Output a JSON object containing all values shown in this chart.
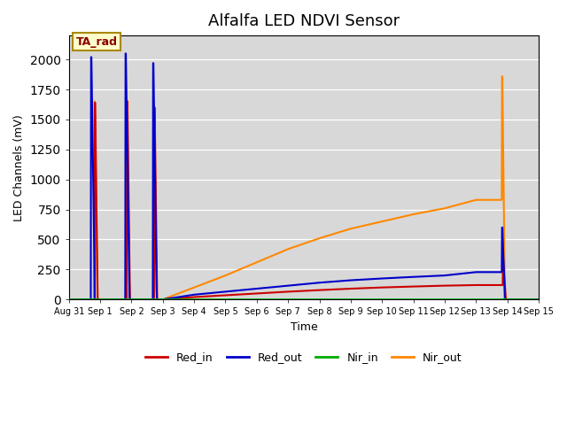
{
  "title": "Alfalfa LED NDVI Sensor",
  "xlabel": "Time",
  "ylabel": "LED Channels (mV)",
  "ylim": [
    0,
    2200
  ],
  "xlim": [
    0,
    15
  ],
  "background_color": "#d8d8d8",
  "annotation_text": "TA_rad",
  "x_tick_labels": [
    "Aug 31",
    "Sep 1",
    "Sep 2",
    "Sep 3",
    "Sep 4",
    "Sep 5",
    "Sep 6",
    "Sep 7",
    "Sep 8",
    "Sep 9",
    "Sep 10",
    "Sep 11",
    "Sep 12",
    "Sep 13",
    "Sep 14",
    "Sep 15"
  ],
  "x_tick_positions": [
    0,
    1,
    2,
    3,
    4,
    5,
    6,
    7,
    8,
    9,
    10,
    11,
    12,
    13,
    14,
    15
  ],
  "series": {
    "Red_in": {
      "color": "#cc0000",
      "linewidth": 1.5
    },
    "Red_out": {
      "color": "#0000cc",
      "linewidth": 1.5
    },
    "Nir_in": {
      "color": "#00aa00",
      "linewidth": 1.5
    },
    "Nir_out": {
      "color": "#ff8800",
      "linewidth": 1.5
    }
  },
  "red_in_x": [
    0,
    0.82,
    0.83,
    0.84,
    0.92,
    0.93,
    1.85,
    1.86,
    1.87,
    1.95,
    1.96,
    2.72,
    2.73,
    2.74,
    2.82,
    2.83,
    3.0,
    4,
    5,
    6,
    7,
    8,
    9,
    10,
    11,
    12,
    13,
    13.85,
    13.86,
    13.87,
    13.95,
    13.96,
    15
  ],
  "red_in_y": [
    0,
    0,
    1640,
    1640,
    10,
    0,
    0,
    1650,
    1650,
    10,
    0,
    0,
    1600,
    1600,
    10,
    0,
    0,
    20,
    35,
    50,
    65,
    78,
    90,
    100,
    108,
    115,
    120,
    120,
    320,
    320,
    10,
    0,
    0
  ],
  "red_out_x": [
    0,
    0.7,
    0.71,
    0.72,
    0.82,
    0.83,
    1.8,
    1.81,
    1.82,
    1.93,
    1.94,
    2.68,
    2.69,
    2.7,
    2.8,
    2.81,
    3.0,
    4,
    5,
    6,
    7,
    8,
    9,
    10,
    11,
    12,
    13,
    13.82,
    13.83,
    13.84,
    13.92,
    13.93,
    15
  ],
  "red_out_y": [
    0,
    0,
    2020,
    2020,
    240,
    0,
    0,
    2050,
    2050,
    140,
    0,
    0,
    1970,
    1970,
    100,
    0,
    0,
    40,
    65,
    90,
    115,
    140,
    160,
    175,
    188,
    200,
    228,
    228,
    600,
    600,
    10,
    0,
    0
  ],
  "nir_in_x": [
    0,
    13.88,
    13.89,
    13.9,
    13.91,
    15
  ],
  "nir_in_y": [
    0,
    0,
    5,
    5,
    0,
    0
  ],
  "nir_out_x": [
    0,
    0.81,
    0.82,
    0.83,
    0.91,
    0.92,
    1.84,
    1.85,
    1.86,
    1.94,
    1.95,
    2.7,
    2.71,
    2.72,
    2.8,
    2.81,
    3.0,
    4,
    5,
    6,
    7,
    8,
    9,
    10,
    11,
    12,
    13,
    13.82,
    13.83,
    13.84,
    13.92,
    13.93,
    15
  ],
  "nir_out_y": [
    0,
    0,
    1650,
    1650,
    70,
    0,
    0,
    1660,
    1660,
    80,
    0,
    0,
    1610,
    1610,
    80,
    0,
    0,
    100,
    200,
    310,
    420,
    510,
    590,
    650,
    710,
    760,
    830,
    830,
    1860,
    1860,
    10,
    0,
    0
  ]
}
